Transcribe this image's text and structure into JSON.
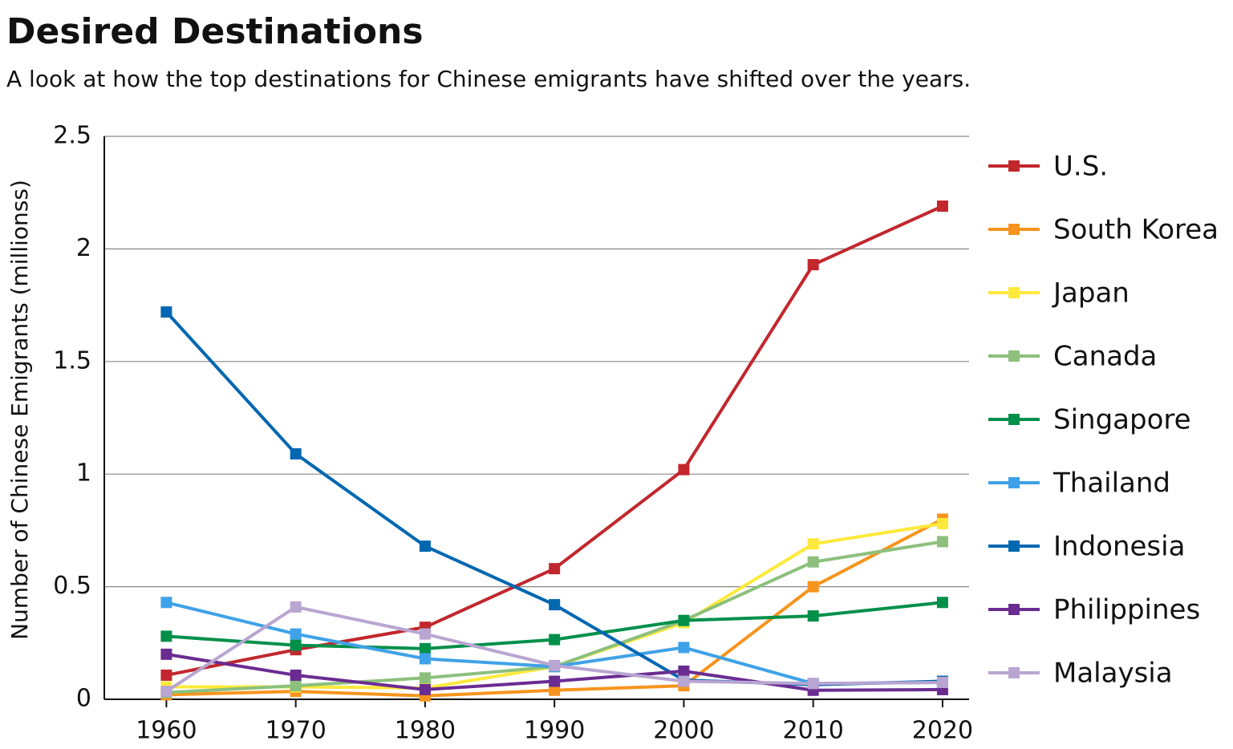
{
  "chart_data": {
    "type": "line",
    "title": "Desired Destinations",
    "subtitle": "A look at how the top destinations for Chinese emigrants have shifted over the years.",
    "y_label": "Number of Chinese Emigrants (millionss)",
    "x": [
      1960,
      1970,
      1980,
      1990,
      2000,
      2010,
      2020
    ],
    "xlim": [
      1955.2,
      2022.05
    ],
    "xticks": [
      1960,
      1970,
      1980,
      1990,
      2000,
      2010,
      2020
    ],
    "ylim": [
      0,
      2.5
    ],
    "yticks": [
      0,
      0.5,
      1,
      1.5,
      2,
      2.5
    ],
    "grid": true,
    "legend": "right",
    "series": [
      {
        "name": "U.S.",
        "color": "#c1272d",
        "values": [
          0.107,
          0.22,
          0.32,
          0.58,
          1.02,
          1.93,
          2.19
        ]
      },
      {
        "name": "South Korea",
        "color": "#f7941d",
        "values": [
          0.02,
          0.035,
          0.015,
          0.04,
          0.06,
          0.5,
          0.8
        ]
      },
      {
        "name": "Japan",
        "color": "#fde93b",
        "values": [
          0.055,
          0.055,
          0.05,
          0.145,
          0.34,
          0.69,
          0.78
        ]
      },
      {
        "name": "Canada",
        "color": "#8cc07c",
        "values": [
          0.03,
          0.06,
          0.095,
          0.145,
          0.35,
          0.61,
          0.7
        ]
      },
      {
        "name": "Singapore",
        "color": "#00904a",
        "values": [
          0.28,
          0.24,
          0.225,
          0.265,
          0.35,
          0.37,
          0.43
        ]
      },
      {
        "name": "Thailand",
        "color": "#3fa2e8",
        "values": [
          0.43,
          0.29,
          0.18,
          0.145,
          0.23,
          0.07,
          0.075
        ]
      },
      {
        "name": "Indonesia",
        "color": "#0067b1",
        "values": [
          1.72,
          1.09,
          0.68,
          0.42,
          0.085,
          0.065,
          0.08
        ]
      },
      {
        "name": "Philippines",
        "color": "#6a2c91",
        "values": [
          0.2,
          0.107,
          0.043,
          0.08,
          0.125,
          0.04,
          0.043
        ]
      },
      {
        "name": "Malaysia",
        "color": "#b9a5d1",
        "values": [
          0.035,
          0.41,
          0.29,
          0.15,
          0.08,
          0.07,
          0.075
        ]
      }
    ]
  }
}
